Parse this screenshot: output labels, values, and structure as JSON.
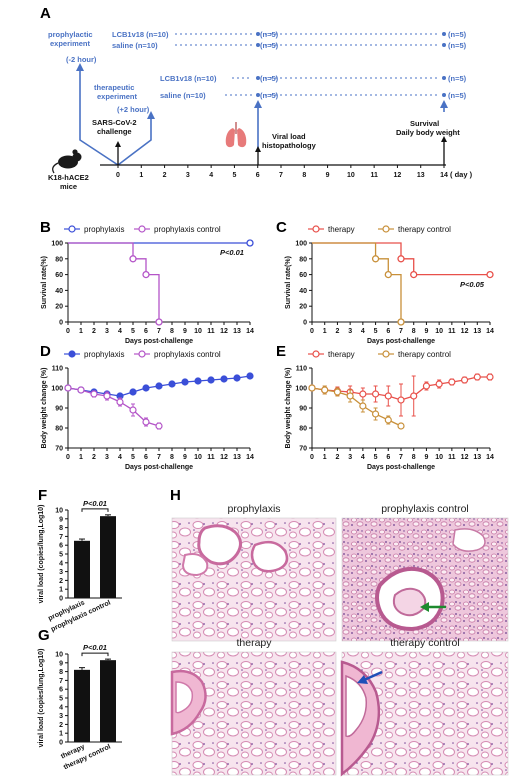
{
  "panels": {
    "A": "A",
    "B": "B",
    "C": "C",
    "D": "D",
    "E": "E",
    "F": "F",
    "G": "G",
    "H": "H"
  },
  "schematic": {
    "prophylactic_label": [
      "prophylactic",
      "experiment"
    ],
    "prophylactic_time": "(-2 hour)",
    "therapeutic_label": [
      "therapeutic",
      "experiment"
    ],
    "therapeutic_time": "(+2 hour)",
    "arms": [
      {
        "name": "LCB1v18 (n=10)",
        "mid": "(n=5)",
        "end": "(n=5)"
      },
      {
        "name": "saline (n=10)",
        "mid": "(n=5)",
        "end": "(n=5)"
      },
      {
        "name": "LCB1v18 (n=10)",
        "mid": "(n=5)",
        "end": "(n=5)"
      },
      {
        "name": "saline (n=10)",
        "mid": "(n=5)",
        "end": "(n=5)"
      }
    ],
    "challenge": [
      "SARS-CoV-2",
      "challenge"
    ],
    "viral": [
      "Viral load",
      "histopathology"
    ],
    "survival": [
      "Survival",
      "Daily body weight"
    ],
    "mice": [
      "K18-hACE2",
      "mice"
    ],
    "timeline_ticks": [
      "0",
      "1",
      "2",
      "3",
      "4",
      "5",
      "6",
      "7",
      "8",
      "9",
      "10",
      "11",
      "12",
      "13",
      "14"
    ],
    "day_unit": "( day )",
    "colors": {
      "blue": "#4a72c4"
    }
  },
  "chart_data": [
    {
      "id": "B",
      "type": "line",
      "legend": [
        "prophylaxis",
        "prophylaxis control"
      ],
      "ylabel": "Survival rate(%)",
      "xlabel": "Days post-challenge",
      "ylim": [
        0,
        100
      ],
      "xlim": [
        0,
        14
      ],
      "yticks": [
        "0",
        "20",
        "40",
        "60",
        "80",
        "100"
      ],
      "xticks": [
        "0",
        "1",
        "2",
        "3",
        "4",
        "5",
        "6",
        "7",
        "8",
        "9",
        "10",
        "11",
        "12",
        "13",
        "14"
      ],
      "annotation": "P<0.01",
      "series": [
        {
          "name": "prophylaxis",
          "color": "#3b4fd8",
          "step": [
            [
              0,
              100
            ],
            [
              14,
              100
            ]
          ],
          "points": [
            [
              14,
              100
            ]
          ]
        },
        {
          "name": "prophylaxis control",
          "color": "#b455c8",
          "step": [
            [
              0,
              100
            ],
            [
              5,
              100
            ],
            [
              5,
              80
            ],
            [
              6,
              80
            ],
            [
              6,
              60
            ],
            [
              7,
              60
            ],
            [
              7,
              0
            ]
          ],
          "points": [
            [
              5,
              80
            ],
            [
              6,
              60
            ],
            [
              7,
              0
            ]
          ]
        }
      ]
    },
    {
      "id": "C",
      "type": "line",
      "legend": [
        "therapy",
        "therapy control"
      ],
      "ylabel": "Survival rate(%)",
      "xlabel": "Days post-challenge",
      "ylim": [
        0,
        100
      ],
      "xlim": [
        0,
        14
      ],
      "yticks": [
        "0",
        "20",
        "40",
        "60",
        "80",
        "100"
      ],
      "xticks": [
        "0",
        "1",
        "2",
        "3",
        "4",
        "5",
        "6",
        "7",
        "8",
        "9",
        "10",
        "11",
        "12",
        "13",
        "14"
      ],
      "annotation": "P<0.05",
      "series": [
        {
          "name": "therapy",
          "color": "#e8504a",
          "step": [
            [
              0,
              100
            ],
            [
              7,
              100
            ],
            [
              7,
              80
            ],
            [
              8,
              80
            ],
            [
              8,
              60
            ],
            [
              14,
              60
            ]
          ],
          "points": [
            [
              7,
              80
            ],
            [
              8,
              60
            ],
            [
              14,
              60
            ]
          ]
        },
        {
          "name": "therapy control",
          "color": "#c8903a",
          "step": [
            [
              0,
              100
            ],
            [
              5,
              100
            ],
            [
              5,
              80
            ],
            [
              6,
              80
            ],
            [
              6,
              60
            ],
            [
              7,
              60
            ],
            [
              7,
              0
            ]
          ],
          "points": [
            [
              5,
              80
            ],
            [
              6,
              60
            ],
            [
              7,
              0
            ]
          ]
        }
      ]
    },
    {
      "id": "D",
      "type": "line",
      "legend": [
        "prophylaxis",
        "prophylaxis control"
      ],
      "ylabel": "Body weight change (%)",
      "xlabel": "Days post-challenge",
      "ylim": [
        70,
        110
      ],
      "xlim": [
        0,
        14
      ],
      "yticks": [
        "70",
        "80",
        "90",
        "100",
        "110"
      ],
      "xticks": [
        "0",
        "1",
        "2",
        "3",
        "4",
        "5",
        "6",
        "7",
        "8",
        "9",
        "10",
        "11",
        "12",
        "13",
        "14"
      ],
      "series": [
        {
          "name": "prophylaxis",
          "color": "#3b4fd8",
          "filled": true,
          "x": [
            0,
            1,
            2,
            3,
            4,
            5,
            6,
            7,
            8,
            9,
            10,
            11,
            12,
            13,
            14
          ],
          "y": [
            100,
            99,
            98,
            97,
            96,
            98,
            100,
            101,
            102,
            103,
            103.5,
            104,
            104.5,
            105,
            106
          ],
          "err": [
            0.5,
            0.8,
            1,
            1,
            1,
            1,
            1,
            1,
            1,
            1,
            1,
            1,
            1,
            1,
            1
          ]
        },
        {
          "name": "prophylaxis control",
          "color": "#b455c8",
          "filled": false,
          "x": [
            0,
            1,
            2,
            3,
            4,
            5,
            6,
            7
          ],
          "y": [
            100,
            99,
            97,
            96,
            93,
            89,
            83,
            81
          ],
          "err": [
            0.5,
            1,
            1.5,
            2,
            2,
            3,
            2,
            1.5
          ]
        }
      ]
    },
    {
      "id": "E",
      "type": "line",
      "legend": [
        "therapy",
        "therapy control"
      ],
      "ylabel": "Body weight change (%)",
      "xlabel": "Days post-challenge",
      "ylim": [
        70,
        110
      ],
      "xlim": [
        0,
        14
      ],
      "yticks": [
        "70",
        "80",
        "90",
        "100",
        "110"
      ],
      "xticks": [
        "0",
        "1",
        "2",
        "3",
        "4",
        "5",
        "6",
        "7",
        "8",
        "9",
        "10",
        "11",
        "12",
        "13",
        "14"
      ],
      "series": [
        {
          "name": "therapy",
          "color": "#e8504a",
          "filled": false,
          "x": [
            0,
            1,
            2,
            3,
            4,
            5,
            6,
            7,
            8,
            9,
            10,
            11,
            12,
            13,
            14
          ],
          "y": [
            100,
            99,
            98.5,
            98,
            97,
            97,
            96,
            94,
            96,
            101,
            102,
            103,
            104,
            105.5,
            105.5
          ],
          "err": [
            1,
            2,
            2,
            3,
            3,
            4,
            5,
            8,
            10,
            2,
            2,
            1.5,
            1.5,
            1.5,
            1.5
          ]
        },
        {
          "name": "therapy control",
          "color": "#c8903a",
          "filled": false,
          "x": [
            0,
            1,
            2,
            3,
            4,
            5,
            6,
            7
          ],
          "y": [
            100,
            99,
            98,
            96,
            91,
            87,
            84,
            81
          ],
          "err": [
            1,
            2,
            2,
            3,
            3,
            3,
            2,
            1
          ]
        }
      ]
    },
    {
      "id": "F",
      "type": "bar",
      "categories": [
        "prophylaxis",
        "prophylaxis control"
      ],
      "values": [
        6.5,
        9.3
      ],
      "err": [
        0.2,
        0.15
      ],
      "ylabel": "viral load (copies/lung,Log10)",
      "ylim": [
        0,
        10
      ],
      "yticks": [
        "0",
        "1",
        "2",
        "3",
        "4",
        "5",
        "6",
        "7",
        "8",
        "9",
        "10"
      ],
      "annotation": "P<0.01"
    },
    {
      "id": "G",
      "type": "bar",
      "categories": [
        "therapy",
        "therapy control"
      ],
      "values": [
        8.2,
        9.3
      ],
      "err": [
        0.25,
        0.12
      ],
      "ylabel": "viral load (copies/lung,Log10)",
      "ylim": [
        0,
        10
      ],
      "yticks": [
        "0",
        "1",
        "2",
        "3",
        "4",
        "5",
        "6",
        "7",
        "8",
        "9",
        "10"
      ],
      "annotation": "P<0.01"
    }
  ],
  "histology": [
    {
      "title": "prophylaxis",
      "arrow": "none"
    },
    {
      "title": "prophylaxis control",
      "arrow": "green"
    },
    {
      "title": "therapy",
      "arrow": "none"
    },
    {
      "title": "therapy control",
      "arrow": "blue"
    }
  ]
}
